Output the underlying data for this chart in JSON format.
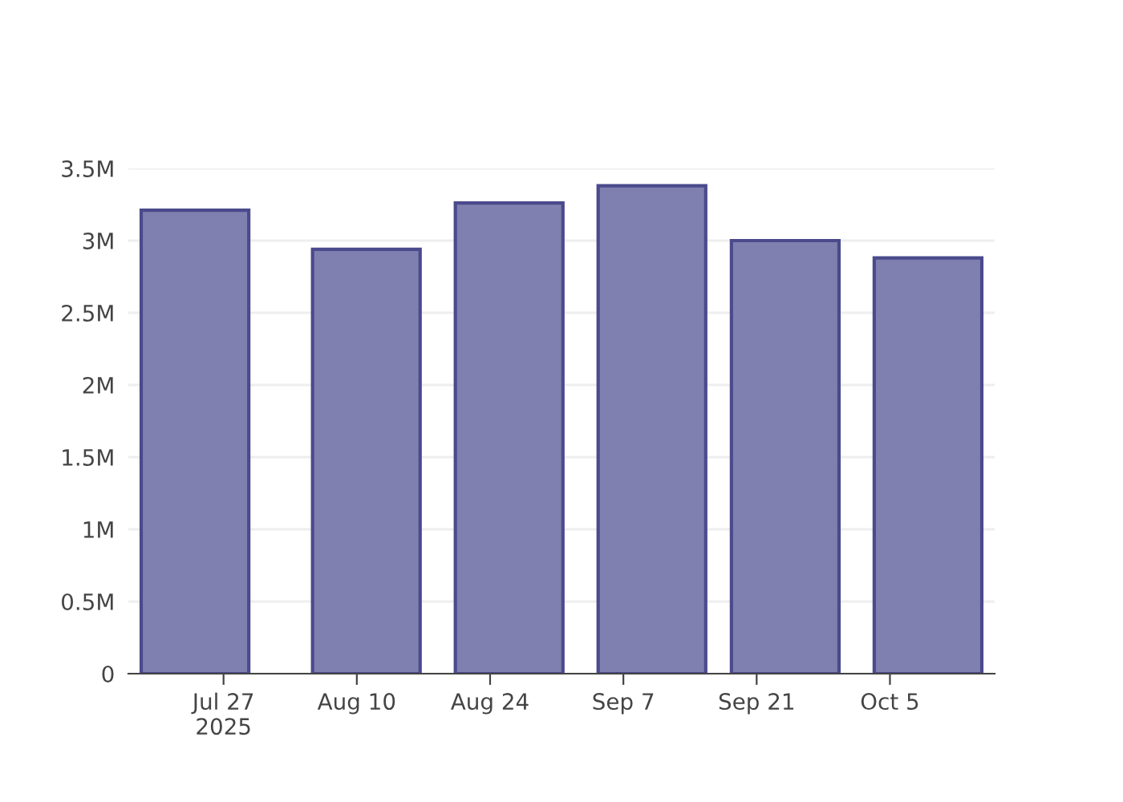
{
  "chart_data": {
    "type": "bar",
    "x": [
      "2025-07-24",
      "2025-08-11",
      "2025-08-26",
      "2025-09-10",
      "2025-09-24",
      "2025-10-09"
    ],
    "values": [
      3210000,
      2940000,
      3260000,
      3380000,
      3000000,
      2880000
    ],
    "color": "#8080b0",
    "xlim": [
      "2025-07-17",
      "2025-10-16"
    ],
    "xticks": [
      {
        "value": "2025-07-27",
        "label": "Jul 27\n2025"
      },
      {
        "value": "2025-08-10",
        "label": "Aug 10"
      },
      {
        "value": "2025-08-24",
        "label": "Aug 24"
      },
      {
        "value": "2025-09-07",
        "label": "Sep 7"
      },
      {
        "value": "2025-09-21",
        "label": "Sep 21"
      },
      {
        "value": "2025-10-05",
        "label": "Oct 5"
      }
    ],
    "ylim": [
      0,
      3500000
    ],
    "yticks": [
      {
        "value": 0,
        "label": "0"
      },
      {
        "value": 500000,
        "label": "0.5M"
      },
      {
        "value": 1000000,
        "label": "1M"
      },
      {
        "value": 1500000,
        "label": "1.5M"
      },
      {
        "value": 2000000,
        "label": "2M"
      },
      {
        "value": 2500000,
        "label": "2.5M"
      },
      {
        "value": 3000000,
        "label": "3M"
      },
      {
        "value": 3500000,
        "label": "3.5M"
      }
    ],
    "grid": "y"
  }
}
